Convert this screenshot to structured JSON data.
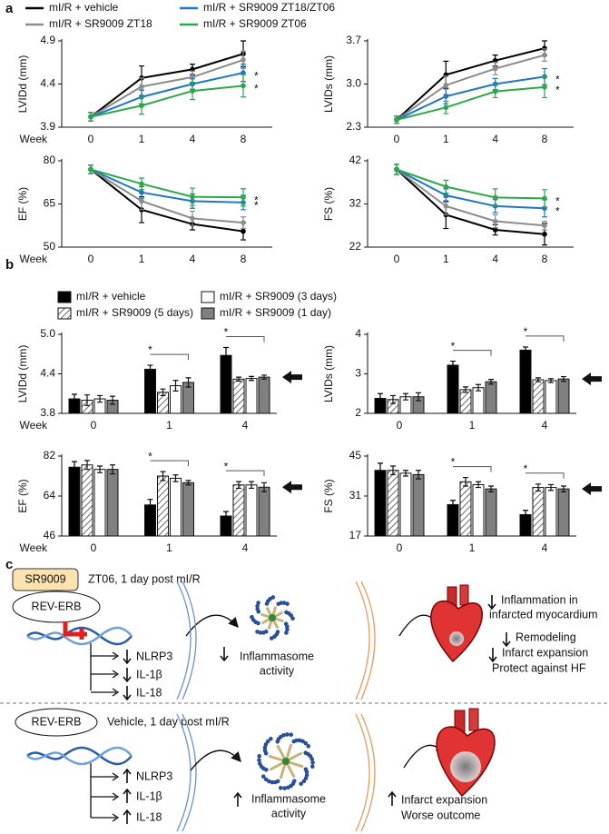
{
  "panel_labels": [
    "a",
    "b",
    "c"
  ],
  "chart_data": [
    {
      "type": "line",
      "y_label": "LVIDd (mm)",
      "x_label": "Week",
      "categories": [
        "0",
        "1",
        "4",
        "8"
      ],
      "ylim": [
        3.9,
        4.9
      ],
      "yticks": [
        3.9,
        4.4,
        4.9
      ],
      "significance": "*",
      "series": [
        {
          "name": "mI/R + vehicle",
          "color": "#000000",
          "values": [
            4.02,
            4.47,
            4.57,
            4.75
          ],
          "errors": [
            0.05,
            0.14,
            0.06,
            0.15
          ]
        },
        {
          "name": "mI/R + SR9009 ZT18",
          "color": "#8c8c8c",
          "values": [
            4.02,
            4.37,
            4.48,
            4.68
          ],
          "errors": [
            0.05,
            0.1,
            0.07,
            0.1
          ]
        },
        {
          "name": "mI/R + SR9009 ZT18/ZT06",
          "color": "#1f77c4",
          "values": [
            4.02,
            4.25,
            4.4,
            4.53
          ],
          "errors": [
            0.05,
            0.08,
            0.06,
            0.1
          ]
        },
        {
          "name": "mI/R + SR9009 ZT06",
          "color": "#2ca84a",
          "values": [
            4.02,
            4.15,
            4.32,
            4.38
          ],
          "errors": [
            0.05,
            0.1,
            0.1,
            0.13
          ]
        }
      ]
    },
    {
      "type": "line",
      "y_label": "LVIDs (mm)",
      "categories": [
        "0",
        "1",
        "4",
        "8"
      ],
      "ylim": [
        2.3,
        3.7
      ],
      "yticks": [
        2.3,
        {
          "value": 3,
          "label": "3.0"
        },
        3.7
      ],
      "significance": "*",
      "series": [
        {
          "color": "#000000",
          "values": [
            2.42,
            3.15,
            3.38,
            3.58
          ],
          "errors": [
            0.06,
            0.22,
            0.09,
            0.12
          ]
        },
        {
          "color": "#8c8c8c",
          "values": [
            2.42,
            2.98,
            3.25,
            3.47
          ],
          "errors": [
            0.06,
            0.15,
            0.1,
            0.1
          ]
        },
        {
          "color": "#1f77c4",
          "values": [
            2.42,
            2.8,
            3.0,
            3.12
          ],
          "errors": [
            0.06,
            0.12,
            0.09,
            0.13
          ]
        },
        {
          "color": "#2ca84a",
          "values": [
            2.42,
            2.62,
            2.88,
            2.95
          ],
          "errors": [
            0.06,
            0.1,
            0.1,
            0.17
          ]
        }
      ]
    },
    {
      "type": "line",
      "y_label": "EF (%)",
      "x_label": "Week",
      "categories": [
        "0",
        "1",
        "4",
        "8"
      ],
      "ylim": [
        50,
        80
      ],
      "yticks": [
        50,
        65,
        80
      ],
      "significance": "*",
      "series": [
        {
          "color": "#000000",
          "values": [
            77,
            63,
            58,
            55.5
          ],
          "errors": [
            1.5,
            4.5,
            2,
            3
          ]
        },
        {
          "color": "#8c8c8c",
          "values": [
            77,
            66,
            60,
            58.5
          ],
          "errors": [
            1.5,
            3,
            2.5,
            2
          ]
        },
        {
          "color": "#1f77c4",
          "values": [
            77,
            69,
            66,
            65.5
          ],
          "errors": [
            1.5,
            2,
            2.5,
            2.5
          ]
        },
        {
          "color": "#2ca84a",
          "values": [
            77,
            72,
            67.5,
            67.3
          ],
          "errors": [
            1.5,
            2,
            3,
            3
          ]
        }
      ]
    },
    {
      "type": "line",
      "y_label": "FS (%)",
      "categories": [
        "0",
        "1",
        "4",
        "8"
      ],
      "ylim": [
        22,
        42
      ],
      "yticks": [
        22,
        32,
        42
      ],
      "significance": "*",
      "series": [
        {
          "color": "#000000",
          "values": [
            40,
            29.5,
            26,
            25
          ],
          "errors": [
            1.2,
            3.2,
            1.2,
            2.5
          ]
        },
        {
          "color": "#8c8c8c",
          "values": [
            40,
            31.5,
            28,
            27
          ],
          "errors": [
            1.2,
            2,
            1.5,
            1
          ]
        },
        {
          "color": "#1f77c4",
          "values": [
            40,
            34,
            31.5,
            31
          ],
          "errors": [
            1.2,
            1.5,
            1.5,
            2
          ]
        },
        {
          "color": "#2ca84a",
          "values": [
            40,
            36,
            33.5,
            33.3
          ],
          "errors": [
            1.2,
            1.5,
            2,
            2
          ]
        }
      ]
    },
    {
      "type": "bar",
      "y_label": "LVIDd (mm)",
      "x_label": "Week",
      "categories": [
        "0",
        "1",
        "4"
      ],
      "ylim": [
        3.8,
        5.0
      ],
      "yticks": [
        3.8,
        4.4,
        {
          "value": 5,
          "label": "5.0"
        }
      ],
      "significance": "*",
      "series": [
        {
          "name": "mI/R + vehicle",
          "color": "#000000",
          "values": [
            4.02,
            4.47,
            4.68
          ],
          "errors": [
            0.07,
            0.06,
            0.12
          ]
        },
        {
          "name": "mI/R + SR9009 (5 days)",
          "color": "#ffffff",
          "pattern": "hatch",
          "values": [
            4.0,
            4.12,
            4.32
          ],
          "errors": [
            0.08,
            0.05,
            0.03
          ]
        },
        {
          "name": "mI/R + SR9009 (3 days)",
          "color": "#ffffff",
          "values": [
            4.02,
            4.22,
            4.33
          ],
          "errors": [
            0.05,
            0.08,
            0.03
          ]
        },
        {
          "name": "mI/R + SR9009 (1 day)",
          "color": "#808080",
          "values": [
            4.0,
            4.27,
            4.35
          ],
          "errors": [
            0.06,
            0.07,
            0.03
          ]
        }
      ]
    },
    {
      "type": "bar",
      "y_label": "LVIDs (mm)",
      "categories": [
        "0",
        "1",
        "4"
      ],
      "ylim": [
        2,
        4
      ],
      "yticks": [
        2,
        3,
        4
      ],
      "significance": "*",
      "series": [
        {
          "color": "#000000",
          "values": [
            2.38,
            3.22,
            3.6
          ],
          "errors": [
            0.12,
            0.1,
            0.08
          ]
        },
        {
          "color": "#ffffff",
          "pattern": "hatch",
          "values": [
            2.35,
            2.6,
            2.85
          ],
          "errors": [
            0.1,
            0.07,
            0.05
          ]
        },
        {
          "color": "#ffffff",
          "values": [
            2.42,
            2.65,
            2.83
          ],
          "errors": [
            0.08,
            0.08,
            0.05
          ]
        },
        {
          "color": "#808080",
          "values": [
            2.42,
            2.8,
            2.87
          ],
          "errors": [
            0.1,
            0.06,
            0.06
          ]
        }
      ]
    },
    {
      "type": "bar",
      "y_label": "EF (%)",
      "x_label": "Week",
      "categories": [
        "0",
        "1",
        "4"
      ],
      "ylim": [
        46,
        82
      ],
      "yticks": [
        46,
        64,
        82
      ],
      "significance": "*",
      "series": [
        {
          "color": "#000000",
          "values": [
            77,
            60,
            55
          ],
          "errors": [
            2.5,
            2.5,
            2
          ]
        },
        {
          "color": "#ffffff",
          "pattern": "hatch",
          "values": [
            78,
            73,
            69
          ],
          "errors": [
            2,
            2,
            1.5
          ]
        },
        {
          "color": "#ffffff",
          "values": [
            76,
            72,
            69
          ],
          "errors": [
            1.5,
            1.5,
            1.5
          ]
        },
        {
          "color": "#808080",
          "values": [
            76,
            70,
            68
          ],
          "errors": [
            2,
            1,
            2
          ]
        }
      ]
    },
    {
      "type": "bar",
      "y_label": "FS (%)",
      "categories": [
        "0",
        "1",
        "4"
      ],
      "ylim": [
        17,
        45
      ],
      "yticks": [
        17,
        31,
        45
      ],
      "significance": "*",
      "series": [
        {
          "color": "#000000",
          "values": [
            40,
            28,
            24.5
          ],
          "errors": [
            2.5,
            1.5,
            1.5
          ]
        },
        {
          "color": "#ffffff",
          "pattern": "hatch",
          "values": [
            40,
            36,
            34
          ],
          "errors": [
            1.5,
            1.5,
            1.2
          ]
        },
        {
          "color": "#ffffff",
          "values": [
            39,
            35,
            34
          ],
          "errors": [
            1,
            1,
            1
          ]
        },
        {
          "color": "#808080",
          "values": [
            38.5,
            33.5,
            33.5
          ],
          "errors": [
            1.5,
            1,
            1
          ]
        }
      ]
    }
  ],
  "diagram": {
    "top": {
      "drug": "SR9009",
      "receptor": "REV-ERB",
      "condition": "ZT06, 1 day post mI/R",
      "genes": [
        "NLRP3",
        "IL-1β",
        "IL-18"
      ],
      "complex": [
        "Inflammasome",
        "activity"
      ],
      "outcomes": [
        "Inflammation in",
        "infarcted myocardium",
        "Remodeling",
        "Infarct expansion",
        "Protect against HF"
      ]
    },
    "bottom": {
      "receptor": "REV-ERB",
      "condition": "Vehicle, 1 day post mI/R",
      "genes": [
        "NLRP3",
        "IL-1β",
        "IL-18"
      ],
      "complex": [
        "Inflammasome",
        "activity"
      ],
      "outcomes": [
        "Infarct expansion",
        "Worse outcome"
      ]
    }
  }
}
